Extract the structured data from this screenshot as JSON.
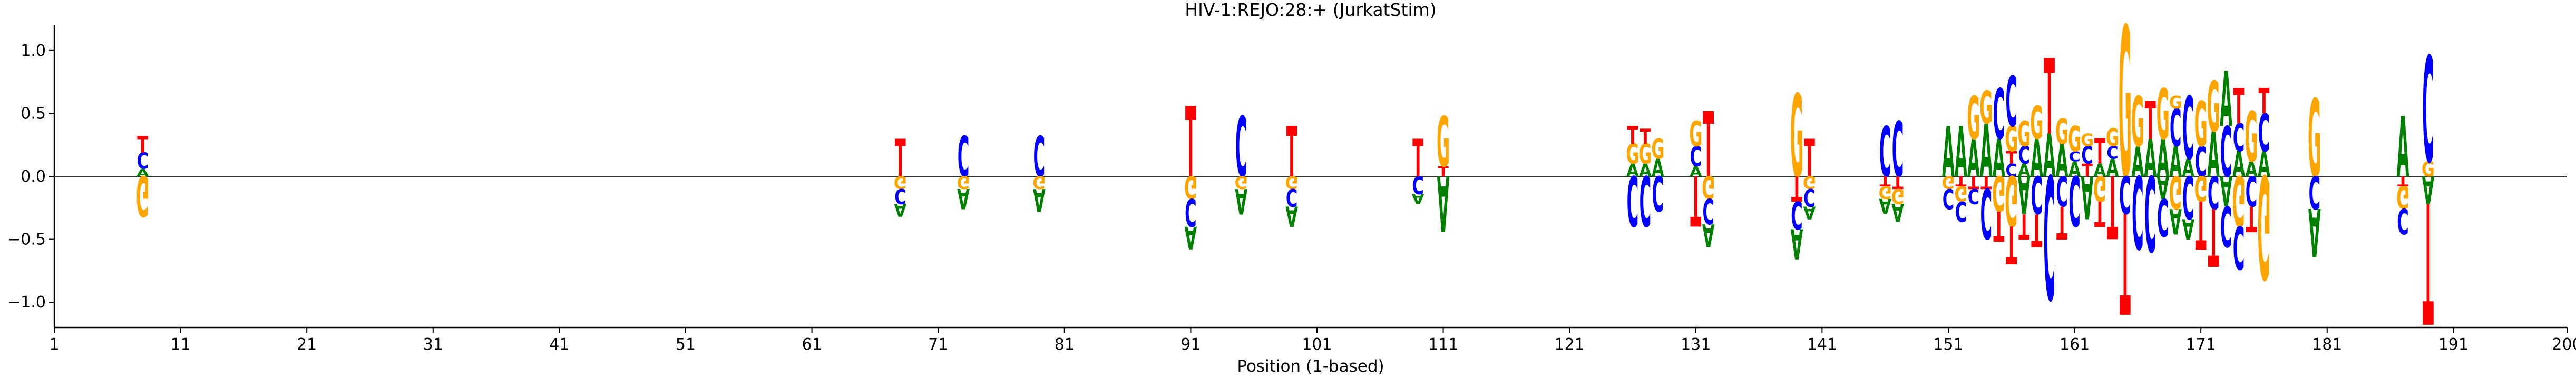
{
  "chart_data": {
    "type": "sequence-logo",
    "title": "HIV-1:REJO:28:+  (JurkatStim)",
    "xlabel": "Position (1-based)",
    "ylabel": "",
    "xlim": [
      1,
      200
    ],
    "ylim": [
      -1.2,
      1.2
    ],
    "x_ticks": [
      1,
      11,
      21,
      31,
      41,
      51,
      61,
      71,
      81,
      91,
      101,
      111,
      121,
      131,
      141,
      151,
      161,
      171,
      181,
      191,
      200
    ],
    "y_ticks": [
      -1.0,
      -0.5,
      0.0,
      0.5,
      1.0
    ],
    "y_tick_labels": [
      "−1.0",
      "−0.5",
      "0.0",
      "0.5",
      "1.0"
    ],
    "colors": {
      "A": "#008000",
      "C": "#0000ff",
      "G": "#ffa500",
      "T": "#ff0000"
    },
    "grid": false,
    "baseline": true,
    "positions": [
      {
        "pos": 8,
        "pos_stack": [
          [
            "A",
            0.06
          ],
          [
            "C",
            0.13
          ],
          [
            "T",
            0.13
          ]
        ],
        "neg_stack": [
          [
            "G",
            0.32
          ]
        ]
      },
      {
        "pos": 68,
        "pos_stack": [
          [
            "T",
            0.3
          ]
        ],
        "neg_stack": [
          [
            "G",
            0.1
          ],
          [
            "C",
            0.12
          ],
          [
            "A",
            0.1
          ]
        ]
      },
      {
        "pos": 73,
        "pos_stack": [
          [
            "C",
            0.32
          ]
        ],
        "neg_stack": [
          [
            "G",
            0.1
          ],
          [
            "A",
            0.16
          ]
        ]
      },
      {
        "pos": 79,
        "pos_stack": [
          [
            "C",
            0.32
          ]
        ],
        "neg_stack": [
          [
            "G",
            0.1
          ],
          [
            "A",
            0.18
          ]
        ]
      },
      {
        "pos": 91,
        "pos_stack": [
          [
            "T",
            0.56
          ]
        ],
        "neg_stack": [
          [
            "G",
            0.18
          ],
          [
            "C",
            0.22
          ],
          [
            "A",
            0.18
          ]
        ]
      },
      {
        "pos": 95,
        "pos_stack": [
          [
            "C",
            0.48
          ]
        ],
        "neg_stack": [
          [
            "G",
            0.1
          ],
          [
            "A",
            0.2
          ]
        ]
      },
      {
        "pos": 99,
        "pos_stack": [
          [
            "T",
            0.4
          ]
        ],
        "neg_stack": [
          [
            "G",
            0.1
          ],
          [
            "C",
            0.14
          ],
          [
            "A",
            0.16
          ]
        ]
      },
      {
        "pos": 109,
        "pos_stack": [
          [
            "T",
            0.3
          ]
        ],
        "neg_stack": [
          [
            "C",
            0.14
          ],
          [
            "A",
            0.08
          ]
        ]
      },
      {
        "pos": 111,
        "pos_stack": [
          [
            "T",
            0.08
          ],
          [
            "G",
            0.4
          ]
        ],
        "neg_stack": [
          [
            "A",
            0.44
          ]
        ]
      },
      {
        "pos": 126,
        "pos_stack": [
          [
            "A",
            0.1
          ],
          [
            "G",
            0.16
          ],
          [
            "T",
            0.14
          ]
        ],
        "neg_stack": [
          [
            "C",
            0.4
          ]
        ]
      },
      {
        "pos": 127,
        "pos_stack": [
          [
            "A",
            0.1
          ],
          [
            "G",
            0.16
          ],
          [
            "T",
            0.12
          ]
        ],
        "neg_stack": [
          [
            "C",
            0.4
          ]
        ]
      },
      {
        "pos": 128,
        "pos_stack": [
          [
            "A",
            0.14
          ],
          [
            "G",
            0.16
          ]
        ],
        "neg_stack": [
          [
            "C",
            0.28
          ]
        ]
      },
      {
        "pos": 131,
        "pos_stack": [
          [
            "A",
            0.08
          ],
          [
            "C",
            0.16
          ],
          [
            "G",
            0.2
          ]
        ],
        "neg_stack": [
          [
            "T",
            0.4
          ]
        ]
      },
      {
        "pos": 132,
        "pos_stack": [
          [
            "T",
            0.52
          ]
        ],
        "neg_stack": [
          [
            "G",
            0.18
          ],
          [
            "C",
            0.2
          ],
          [
            "A",
            0.18
          ]
        ]
      },
      {
        "pos": 139,
        "pos_stack": [
          [
            "G",
            0.66
          ]
        ],
        "neg_stack": [
          [
            "T",
            0.2
          ],
          [
            "C",
            0.22
          ],
          [
            "A",
            0.24
          ]
        ]
      },
      {
        "pos": 140,
        "pos_stack": [
          [
            "T",
            0.3
          ]
        ],
        "neg_stack": [
          [
            "G",
            0.1
          ],
          [
            "C",
            0.14
          ],
          [
            "A",
            0.1
          ]
        ]
      },
      {
        "pos": 146,
        "pos_stack": [
          [
            "C",
            0.4
          ]
        ],
        "neg_stack": [
          [
            "T",
            0.08
          ],
          [
            "G",
            0.1
          ],
          [
            "A",
            0.12
          ]
        ]
      },
      {
        "pos": 147,
        "pos_stack": [
          [
            "C",
            0.44
          ]
        ],
        "neg_stack": [
          [
            "T",
            0.1
          ],
          [
            "G",
            0.12
          ],
          [
            "A",
            0.14
          ]
        ]
      },
      {
        "pos": 151,
        "pos_stack": [
          [
            "A",
            0.4
          ]
        ],
        "neg_stack": [
          [
            "G",
            0.1
          ],
          [
            "C",
            0.16
          ]
        ]
      },
      {
        "pos": 152,
        "pos_stack": [
          [
            "A",
            0.4
          ]
        ],
        "neg_stack": [
          [
            "T",
            0.08
          ],
          [
            "G",
            0.12
          ],
          [
            "C",
            0.16
          ]
        ]
      },
      {
        "pos": 153,
        "pos_stack": [
          [
            "A",
            0.3
          ],
          [
            "G",
            0.34
          ]
        ],
        "neg_stack": [
          [
            "T",
            0.1
          ],
          [
            "C",
            0.12
          ]
        ]
      },
      {
        "pos": 154,
        "pos_stack": [
          [
            "A",
            0.42
          ],
          [
            "G",
            0.26
          ]
        ],
        "neg_stack": [
          [
            "T",
            0.1
          ],
          [
            "C",
            0.4
          ]
        ]
      },
      {
        "pos": 155,
        "pos_stack": [
          [
            "A",
            0.3
          ],
          [
            "C",
            0.4
          ]
        ],
        "neg_stack": [
          [
            "G",
            0.28
          ],
          [
            "T",
            0.24
          ]
        ]
      },
      {
        "pos": 156,
        "pos_stack": [
          [
            "C",
            0.1
          ],
          [
            "T",
            0.1
          ],
          [
            "G",
            0.2
          ],
          [
            "C",
            0.4
          ]
        ],
        "neg_stack": [
          [
            "G",
            0.4
          ],
          [
            "T",
            0.3
          ]
        ]
      },
      {
        "pos": 157,
        "pos_stack": [
          [
            "A",
            0.1
          ],
          [
            "C",
            0.14
          ],
          [
            "G",
            0.2
          ]
        ],
        "neg_stack": [
          [
            "A",
            0.3
          ],
          [
            "T",
            0.2
          ]
        ]
      },
      {
        "pos": 158,
        "pos_stack": [
          [
            "A",
            0.3
          ],
          [
            "G",
            0.26
          ]
        ],
        "neg_stack": [
          [
            "C",
            0.3
          ],
          [
            "T",
            0.26
          ]
        ]
      },
      {
        "pos": 159,
        "pos_stack": [
          [
            "A",
            0.34
          ],
          [
            "T",
            0.6
          ]
        ],
        "neg_stack": [
          [
            "C",
            0.98
          ]
        ]
      },
      {
        "pos": 160,
        "pos_stack": [
          [
            "A",
            0.26
          ],
          [
            "G",
            0.2
          ]
        ],
        "neg_stack": [
          [
            "C",
            0.24
          ],
          [
            "T",
            0.26
          ]
        ]
      },
      {
        "pos": 161,
        "pos_stack": [
          [
            "A",
            0.12
          ],
          [
            "C",
            0.08
          ],
          [
            "G",
            0.2
          ]
        ],
        "neg_stack": [
          [
            "C",
            0.4
          ]
        ]
      },
      {
        "pos": 162,
        "pos_stack": [
          [
            "T",
            0.1
          ],
          [
            "C",
            0.14
          ],
          [
            "G",
            0.1
          ]
        ],
        "neg_stack": [
          [
            "A",
            0.34
          ]
        ]
      },
      {
        "pos": 163,
        "pos_stack": [
          [
            "A",
            0.1
          ],
          [
            "T",
            0.2
          ]
        ],
        "neg_stack": [
          [
            "G",
            0.2
          ],
          [
            "T",
            0.2
          ]
        ]
      },
      {
        "pos": 164,
        "pos_stack": [
          [
            "A",
            0.14
          ],
          [
            "C",
            0.1
          ],
          [
            "G",
            0.14
          ]
        ],
        "neg_stack": [
          [
            "T",
            0.5
          ]
        ]
      },
      {
        "pos": 165,
        "pos_stack": [
          [
            "G",
            1.2
          ]
        ],
        "neg_stack": [
          [
            "C",
            0.3
          ],
          [
            "T",
            0.8
          ]
        ]
      },
      {
        "pos": 166,
        "pos_stack": [
          [
            "A",
            0.24
          ],
          [
            "G",
            0.4
          ]
        ],
        "neg_stack": [
          [
            "C",
            0.58
          ]
        ]
      },
      {
        "pos": 167,
        "pos_stack": [
          [
            "A",
            0.3
          ],
          [
            "T",
            0.3
          ]
        ],
        "neg_stack": [
          [
            "C",
            0.6
          ]
        ]
      },
      {
        "pos": 168,
        "pos_stack": [
          [
            "A",
            0.3
          ],
          [
            "G",
            0.4
          ]
        ],
        "neg_stack": [
          [
            "A",
            0.18
          ],
          [
            "C",
            0.3
          ]
        ]
      },
      {
        "pos": 169,
        "pos_stack": [
          [
            "A",
            0.24
          ],
          [
            "C",
            0.3
          ],
          [
            "G",
            0.1
          ]
        ],
        "neg_stack": [
          [
            "G",
            0.26
          ],
          [
            "A",
            0.2
          ]
        ]
      },
      {
        "pos": 170,
        "pos_stack": [
          [
            "A",
            0.14
          ],
          [
            "C",
            0.5
          ]
        ],
        "neg_stack": [
          [
            "C",
            0.34
          ],
          [
            "A",
            0.16
          ]
        ]
      },
      {
        "pos": 171,
        "pos_stack": [
          [
            "C",
            0.24
          ],
          [
            "G",
            0.36
          ]
        ],
        "neg_stack": [
          [
            "G",
            0.2
          ],
          [
            "T",
            0.38
          ]
        ]
      },
      {
        "pos": 172,
        "pos_stack": [
          [
            "A",
            0.36
          ],
          [
            "G",
            0.4
          ]
        ],
        "neg_stack": [
          [
            "C",
            0.26
          ],
          [
            "T",
            0.46
          ]
        ]
      },
      {
        "pos": 173,
        "pos_stack": [
          [
            "C",
            0.4
          ],
          [
            "A",
            0.44
          ]
        ],
        "neg_stack": [
          [
            "A",
            0.24
          ],
          [
            "C",
            0.32
          ]
        ]
      },
      {
        "pos": 174,
        "pos_stack": [
          [
            "A",
            0.2
          ],
          [
            "C",
            0.22
          ],
          [
            "T",
            0.28
          ]
        ],
        "neg_stack": [
          [
            "G",
            0.4
          ],
          [
            "C",
            0.34
          ]
        ]
      },
      {
        "pos": 175,
        "pos_stack": [
          [
            "A",
            0.12
          ],
          [
            "G",
            0.4
          ]
        ],
        "neg_stack": [
          [
            "C",
            0.24
          ],
          [
            "T",
            0.2
          ]
        ]
      },
      {
        "pos": 176,
        "pos_stack": [
          [
            "A",
            0.2
          ],
          [
            "C",
            0.3
          ],
          [
            "T",
            0.2
          ]
        ],
        "neg_stack": [
          [
            "G",
            0.82
          ]
        ]
      },
      {
        "pos": 180,
        "pos_stack": [
          [
            "G",
            0.62
          ]
        ],
        "neg_stack": [
          [
            "C",
            0.26
          ],
          [
            "A",
            0.38
          ]
        ]
      },
      {
        "pos": 187,
        "pos_stack": [
          [
            "A",
            0.48
          ]
        ],
        "neg_stack": [
          [
            "T",
            0.08
          ],
          [
            "G",
            0.18
          ],
          [
            "C",
            0.2
          ]
        ]
      },
      {
        "pos": 189,
        "pos_stack": [
          [
            "G",
            0.12
          ],
          [
            "C",
            0.84
          ]
        ],
        "neg_stack": [
          [
            "A",
            0.22
          ],
          [
            "T",
            0.96
          ]
        ]
      }
    ]
  }
}
